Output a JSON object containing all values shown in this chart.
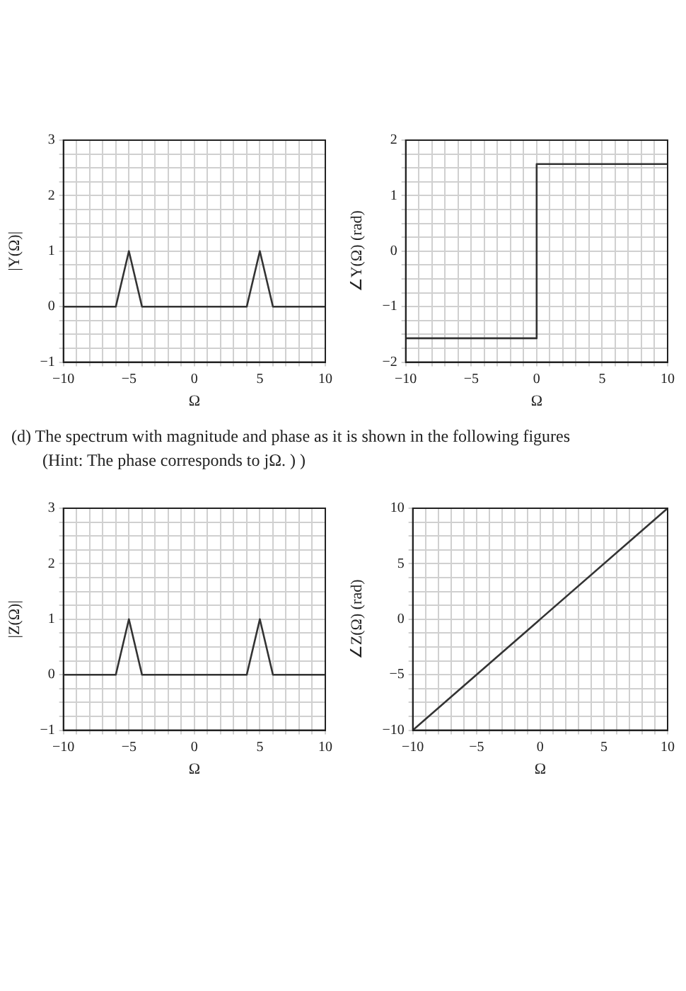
{
  "chart_data": [
    {
      "type": "line",
      "ylabel": "|Y(Ω)|",
      "xlabel": "Ω",
      "x": [
        -10,
        -6,
        -5,
        -4,
        4,
        5,
        6,
        10
      ],
      "series": [
        {
          "color": "#333333",
          "values": [
            0,
            0,
            1,
            0,
            0,
            1,
            0,
            0
          ]
        }
      ],
      "xlim": [
        -10,
        10
      ],
      "ylim": [
        -1,
        3
      ],
      "grid": true,
      "marker": "none",
      "line_style": "solid",
      "xticks": [
        -10,
        {
          "value": -9,
          "label": null
        },
        {
          "value": -8,
          "label": null
        },
        {
          "value": -7,
          "label": null
        },
        {
          "value": -6,
          "label": null
        },
        -5,
        {
          "value": -4,
          "label": null
        },
        {
          "value": -3,
          "label": null
        },
        {
          "value": -2,
          "label": null
        },
        {
          "value": -1,
          "label": null
        },
        0,
        {
          "value": 1,
          "label": null
        },
        {
          "value": 2,
          "label": null
        },
        {
          "value": 3,
          "label": null
        },
        {
          "value": 4,
          "label": null
        },
        5,
        {
          "value": 6,
          "label": null
        },
        {
          "value": 7,
          "label": null
        },
        {
          "value": 8,
          "label": null
        },
        {
          "value": 9,
          "label": null
        },
        10
      ],
      "yticks": [
        -1,
        {
          "value": -0.75,
          "label": null
        },
        {
          "value": -0.5,
          "label": null
        },
        {
          "value": -0.25,
          "label": null
        },
        0,
        {
          "value": 0.25,
          "label": null
        },
        {
          "value": 0.5,
          "label": null
        },
        {
          "value": 0.75,
          "label": null
        },
        1,
        {
          "value": 1.25,
          "label": null
        },
        {
          "value": 1.5,
          "label": null
        },
        {
          "value": 1.75,
          "label": null
        },
        2,
        {
          "value": 2.25,
          "label": null
        },
        {
          "value": 2.5,
          "label": null
        },
        {
          "value": 2.75,
          "label": null
        },
        3
      ]
    },
    {
      "type": "line",
      "ylabel": "∠Y(Ω) (rad)",
      "xlabel": "Ω",
      "x": [
        -10,
        0,
        0,
        10
      ],
      "series": [
        {
          "color": "#333333",
          "values": [
            -1.57,
            -1.57,
            1.57,
            1.57
          ]
        }
      ],
      "xlim": [
        -10,
        10
      ],
      "ylim": [
        -2,
        2
      ],
      "grid": true,
      "marker": "none",
      "line_style": "solid",
      "annotations": [
        "(d) The spectrum with magnitude and phase as it is shown in the following figures",
        "(Hint: The phase corresponds to jΩ. ) )"
      ],
      "xticks": [
        -10,
        {
          "value": -9,
          "label": null
        },
        {
          "value": -8,
          "label": null
        },
        {
          "value": -7,
          "label": null
        },
        {
          "value": -6,
          "label": null
        },
        -5,
        {
          "value": -4,
          "label": null
        },
        {
          "value": -3,
          "label": null
        },
        {
          "value": -2,
          "label": null
        },
        {
          "value": -1,
          "label": null
        },
        0,
        {
          "value": 1,
          "label": null
        },
        {
          "value": 2,
          "label": null
        },
        {
          "value": 3,
          "label": null
        },
        {
          "value": 4,
          "label": null
        },
        5,
        {
          "value": 6,
          "label": null
        },
        {
          "value": 7,
          "label": null
        },
        {
          "value": 8,
          "label": null
        },
        {
          "value": 9,
          "label": null
        },
        10
      ],
      "yticks": [
        -2,
        {
          "value": -1.75,
          "label": null
        },
        {
          "value": -1.5,
          "label": null
        },
        {
          "value": -1.25,
          "label": null
        },
        -1,
        {
          "value": -0.75,
          "label": null
        },
        {
          "value": -0.5,
          "label": null
        },
        {
          "value": -0.25,
          "label": null
        },
        0,
        {
          "value": 0.25,
          "label": null
        },
        {
          "value": 0.5,
          "label": null
        },
        {
          "value": 0.75,
          "label": null
        },
        1,
        {
          "value": 1.25,
          "label": null
        },
        {
          "value": 1.5,
          "label": null
        },
        {
          "value": 1.75,
          "label": null
        },
        2
      ]
    },
    {
      "type": "line",
      "ylabel": "|Z(Ω)|",
      "xlabel": "Ω",
      "x": [
        -10,
        -6,
        -5,
        -4,
        4,
        5,
        6,
        10
      ],
      "series": [
        {
          "color": "#333333",
          "values": [
            0,
            0,
            1,
            0,
            0,
            1,
            0,
            0
          ]
        }
      ],
      "xlim": [
        -10,
        10
      ],
      "ylim": [
        -1,
        3
      ],
      "grid": true,
      "marker": "none",
      "line_style": "solid",
      "xticks": [
        -10,
        {
          "value": -9,
          "label": null
        },
        {
          "value": -8,
          "label": null
        },
        {
          "value": -7,
          "label": null
        },
        {
          "value": -6,
          "label": null
        },
        -5,
        {
          "value": -4,
          "label": null
        },
        {
          "value": -3,
          "label": null
        },
        {
          "value": -2,
          "label": null
        },
        {
          "value": -1,
          "label": null
        },
        0,
        {
          "value": 1,
          "label": null
        },
        {
          "value": 2,
          "label": null
        },
        {
          "value": 3,
          "label": null
        },
        {
          "value": 4,
          "label": null
        },
        5,
        {
          "value": 6,
          "label": null
        },
        {
          "value": 7,
          "label": null
        },
        {
          "value": 8,
          "label": null
        },
        {
          "value": 9,
          "label": null
        },
        10
      ],
      "yticks": [
        -1,
        {
          "value": -0.75,
          "label": null
        },
        {
          "value": -0.5,
          "label": null
        },
        {
          "value": -0.25,
          "label": null
        },
        0,
        {
          "value": 0.25,
          "label": null
        },
        {
          "value": 0.5,
          "label": null
        },
        {
          "value": 0.75,
          "label": null
        },
        1,
        {
          "value": 1.25,
          "label": null
        },
        {
          "value": 1.5,
          "label": null
        },
        {
          "value": 1.75,
          "label": null
        },
        2,
        {
          "value": 2.25,
          "label": null
        },
        {
          "value": 2.5,
          "label": null
        },
        {
          "value": 2.75,
          "label": null
        },
        3
      ]
    },
    {
      "type": "line",
      "ylabel": "∠Z(Ω) (rad)",
      "xlabel": "Ω",
      "x": [
        -10,
        10
      ],
      "series": [
        {
          "color": "#333333",
          "values": [
            -10,
            10
          ]
        }
      ],
      "xlim": [
        -10,
        10
      ],
      "ylim": [
        -10,
        10
      ],
      "grid": true,
      "marker": "none",
      "line_style": "solid",
      "xticks": [
        -10,
        {
          "value": -9,
          "label": null
        },
        {
          "value": -8,
          "label": null
        },
        {
          "value": -7,
          "label": null
        },
        {
          "value": -6,
          "label": null
        },
        -5,
        {
          "value": -4,
          "label": null
        },
        {
          "value": -3,
          "label": null
        },
        {
          "value": -2,
          "label": null
        },
        {
          "value": -1,
          "label": null
        },
        0,
        {
          "value": 1,
          "label": null
        },
        {
          "value": 2,
          "label": null
        },
        {
          "value": 3,
          "label": null
        },
        {
          "value": 4,
          "label": null
        },
        5,
        {
          "value": 6,
          "label": null
        },
        {
          "value": 7,
          "label": null
        },
        {
          "value": 8,
          "label": null
        },
        {
          "value": 9,
          "label": null
        },
        10
      ],
      "yticks": [
        -10,
        {
          "value": -8.75,
          "label": null
        },
        {
          "value": -7.5,
          "label": null
        },
        {
          "value": -6.25,
          "label": null
        },
        -5,
        {
          "value": -3.75,
          "label": null
        },
        {
          "value": -2.5,
          "label": null
        },
        {
          "value": -1.25,
          "label": null
        },
        0,
        {
          "value": 1.25,
          "label": null
        },
        {
          "value": 2.5,
          "label": null
        },
        {
          "value": 3.75,
          "label": null
        },
        5,
        {
          "value": 6.25,
          "label": null
        },
        {
          "value": 7.5,
          "label": null
        },
        {
          "value": 8.75,
          "label": null
        },
        10
      ]
    }
  ]
}
